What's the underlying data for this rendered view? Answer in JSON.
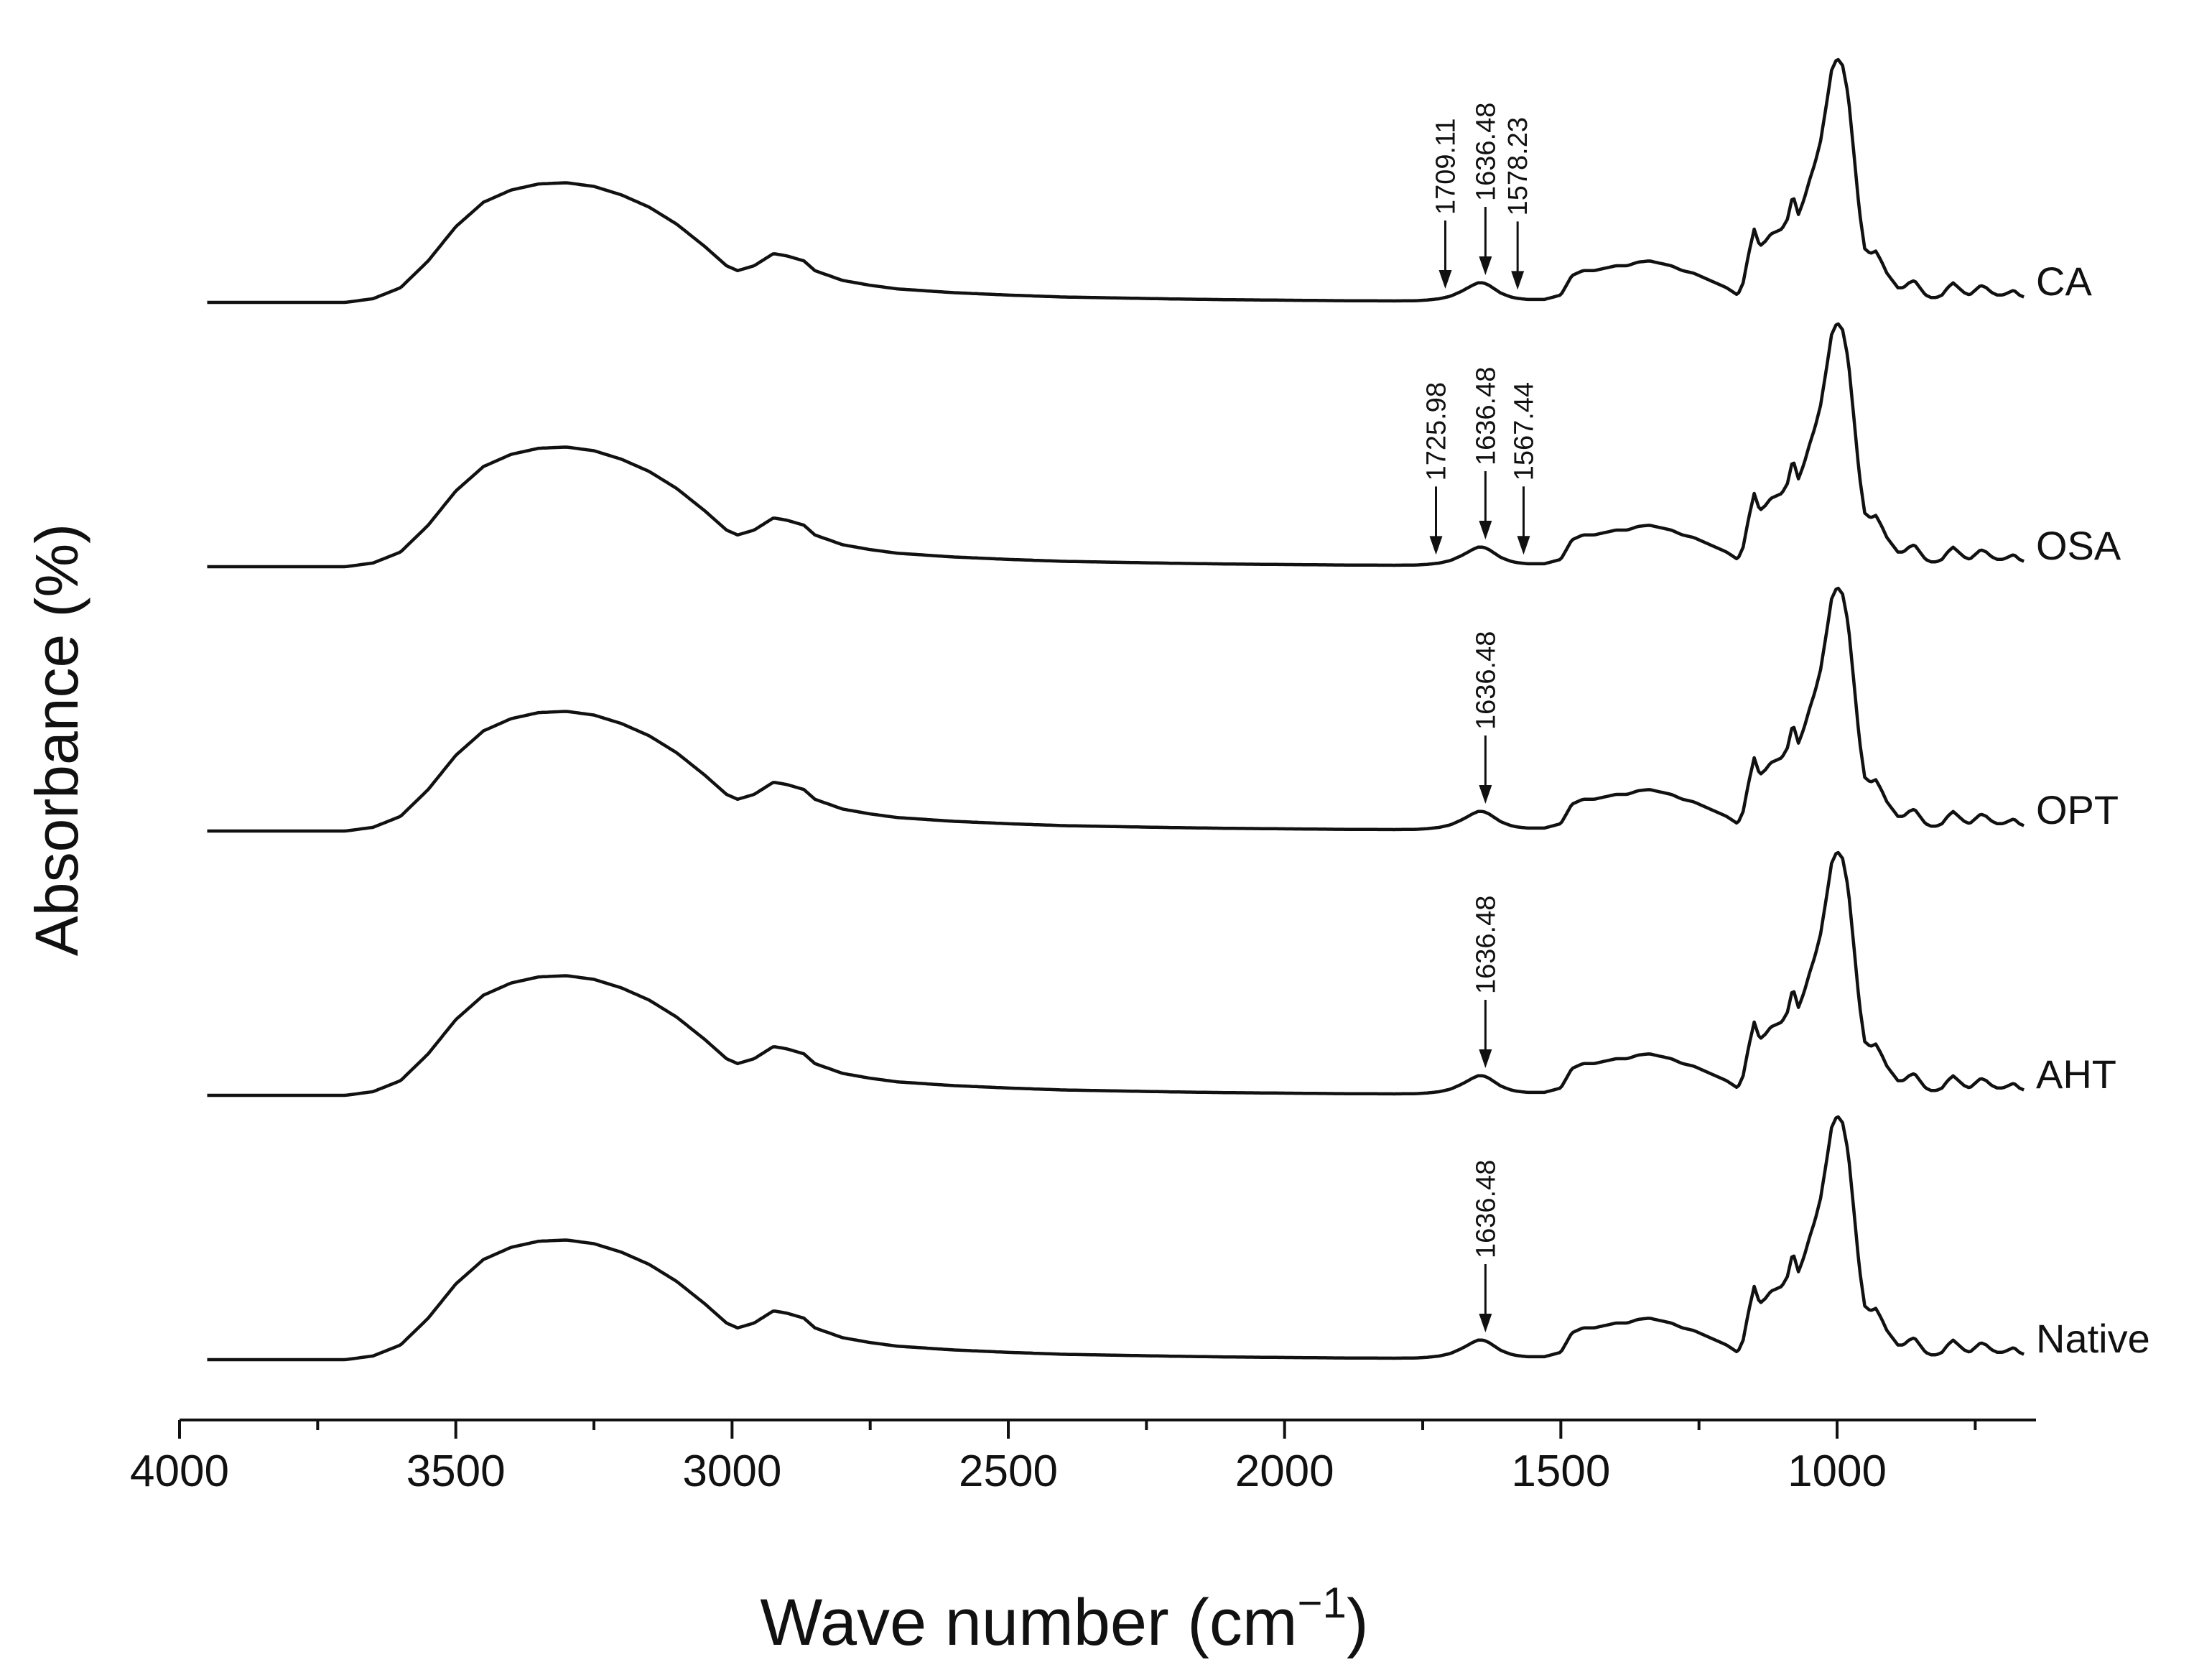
{
  "chart_data": {
    "type": "line",
    "title": "",
    "xlabel": "Wave number (cm",
    "xlabel_sup": "−1",
    "xlabel_close": ")",
    "ylabel": "Absorbance (%)",
    "xlim": [
      4000,
      640
    ],
    "x_ticks": [
      {
        "value": 4000,
        "label": "4000"
      },
      {
        "value": 3500,
        "label": "3500"
      },
      {
        "value": 3000,
        "label": "3000"
      },
      {
        "value": 2500,
        "label": "2500"
      },
      {
        "value": 2000,
        "label": "2000"
      },
      {
        "value": 1500,
        "label": "1500"
      },
      {
        "value": 1000,
        "label": "1000"
      }
    ],
    "minor_step": 250,
    "line_color": "#111111",
    "spectral_profile": {
      "x": [
        4000,
        3700,
        3650,
        3600,
        3550,
        3500,
        3450,
        3400,
        3350,
        3300,
        3250,
        3200,
        3150,
        3100,
        3050,
        3010,
        2990,
        2960,
        2925,
        2900,
        2870,
        2850,
        2800,
        2750,
        2700,
        2600,
        2500,
        2400,
        2300,
        2200,
        2100,
        2000,
        1900,
        1800,
        1760,
        1740,
        1720,
        1700,
        1680,
        1660,
        1650,
        1640,
        1630,
        1620,
        1610,
        1600,
        1590,
        1580,
        1560,
        1530,
        1500,
        1480,
        1460,
        1440,
        1420,
        1400,
        1380,
        1360,
        1340,
        1320,
        1300,
        1280,
        1260,
        1240,
        1220,
        1200,
        1180,
        1170,
        1160,
        1150,
        1140,
        1130,
        1120,
        1110,
        1100,
        1090,
        1080,
        1070,
        1060,
        1050,
        1040,
        1030,
        1020,
        1010,
        1000,
        990,
        980,
        970,
        960,
        950,
        940,
        930,
        920,
        910,
        900,
        890,
        880,
        870,
        860,
        850,
        840,
        830,
        820,
        810,
        800,
        790,
        780,
        770,
        760,
        750,
        740,
        730,
        720,
        710,
        700,
        690,
        680,
        670,
        660,
        650
      ],
      "y": [
        0,
        0,
        0.015,
        0.06,
        0.17,
        0.31,
        0.41,
        0.46,
        0.485,
        0.49,
        0.475,
        0.44,
        0.39,
        0.32,
        0.23,
        0.15,
        0.13,
        0.15,
        0.2,
        0.19,
        0.17,
        0.13,
        0.09,
        0.07,
        0.055,
        0.04,
        0.03,
        0.022,
        0.018,
        0.014,
        0.011,
        0.009,
        0.007,
        0.006,
        0.007,
        0.01,
        0.015,
        0.025,
        0.045,
        0.07,
        0.08,
        0.08,
        0.07,
        0.055,
        0.04,
        0.03,
        0.022,
        0.017,
        0.012,
        0.012,
        0.03,
        0.11,
        0.13,
        0.13,
        0.14,
        0.15,
        0.15,
        0.165,
        0.17,
        0.16,
        0.15,
        0.13,
        0.12,
        0.1,
        0.08,
        0.06,
        0.03,
        0.08,
        0.2,
        0.3,
        0.23,
        0.25,
        0.28,
        0.29,
        0.3,
        0.34,
        0.44,
        0.36,
        0.42,
        0.5,
        0.57,
        0.66,
        0.8,
        0.95,
        1.0,
        0.97,
        0.85,
        0.62,
        0.38,
        0.22,
        0.2,
        0.21,
        0.17,
        0.12,
        0.09,
        0.06,
        0.06,
        0.08,
        0.09,
        0.06,
        0.03,
        0.02,
        0.02,
        0.03,
        0.06,
        0.08,
        0.06,
        0.04,
        0.03,
        0.05,
        0.07,
        0.06,
        0.04,
        0.03,
        0.03,
        0.04,
        0.05,
        0.03,
        0.02,
        0.01
      ]
    },
    "series": [
      {
        "name": "CA",
        "baseline_offset": 4,
        "peaks": [
          1709.11,
          1636.48,
          1578.23
        ],
        "peak_labels": [
          "1709.11",
          "1636.48",
          "1578.23"
        ]
      },
      {
        "name": "OSA",
        "baseline_offset": 3,
        "peaks": [
          1725.98,
          1636.48,
          1567.44
        ],
        "peak_labels": [
          "1725.98",
          "1636.48",
          "1567.44"
        ]
      },
      {
        "name": "OPT",
        "baseline_offset": 2,
        "peaks": [
          1636.48
        ],
        "peak_labels": [
          "1636.48"
        ]
      },
      {
        "name": "AHT",
        "baseline_offset": 1,
        "peaks": [
          1636.48
        ],
        "peak_labels": [
          "1636.48"
        ]
      },
      {
        "name": "Native",
        "baseline_offset": 0,
        "peaks": [
          1636.48
        ],
        "peak_labels": [
          "1636.48"
        ]
      }
    ]
  }
}
